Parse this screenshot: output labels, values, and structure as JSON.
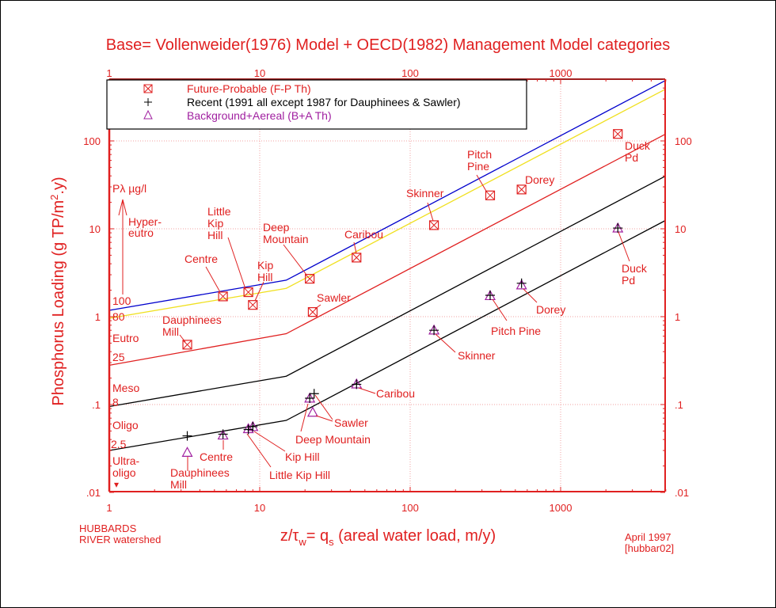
{
  "chart_data": {
    "type": "scatter",
    "title": "Base= Vollenweider(1976) Model + OECD(1982) Management Model categories",
    "xlabel": "z/τw= qs (areal water load, m/y)",
    "ylabel": "Phosphorus Loading (g TP/m2.y)",
    "xscale": "log",
    "yscale": "log",
    "xlim": [
      1,
      5000
    ],
    "ylim": [
      0.01,
      500
    ],
    "grid": true,
    "x_ticks": [
      {
        "value": 1,
        "label": "1"
      },
      {
        "value": 10,
        "label": "10"
      },
      {
        "value": 100,
        "label": "100"
      },
      {
        "value": 1000,
        "label": "1000"
      }
    ],
    "y_ticks": [
      {
        "value": 0.01,
        "label": ".01"
      },
      {
        "value": 0.1,
        "label": ".1"
      },
      {
        "value": 1,
        "label": "1"
      },
      {
        "value": 10,
        "label": "10"
      },
      {
        "value": 100,
        "label": "100"
      }
    ],
    "legend": {
      "placement": "top-left",
      "entries": [
        {
          "marker": "boxed-x",
          "label": "Future-Probable (F-P Th)",
          "color": "#e02020"
        },
        {
          "marker": "plus",
          "label": "Recent (1991 all except 1987 for Dauphinees & Sawler)",
          "color": "#000000"
        },
        {
          "marker": "triangle",
          "label": "Background+Aereal (B+A Th)",
          "color": "#a020a0"
        }
      ]
    },
    "model_lines": [
      {
        "name": "Pλ 100 µg/l (blue)",
        "color": "#0000cc",
        "x": [
          1,
          15,
          5000
        ],
        "y": [
          1.18,
          2.6,
          490
        ]
      },
      {
        "name": "Pλ 80 µg/l (yellow)",
        "color": "#f0e020",
        "x": [
          1,
          15,
          5000
        ],
        "y": [
          0.96,
          2.1,
          390
        ]
      },
      {
        "name": "Pλ 25 µg/l (red)",
        "color": "#e02020",
        "x": [
          1,
          15,
          5000
        ],
        "y": [
          0.28,
          0.64,
          120
        ]
      },
      {
        "name": "Pλ 8 µg/l (black)",
        "color": "#000000",
        "x": [
          1,
          15,
          5000
        ],
        "y": [
          0.095,
          0.21,
          40
        ]
      },
      {
        "name": "Pλ 2.5 µg/l (black)",
        "color": "#000000",
        "x": [
          1,
          15,
          5000
        ],
        "y": [
          0.03,
          0.066,
          12.5
        ]
      }
    ],
    "category_labels": [
      {
        "text": "Pλ  µg/l"
      },
      {
        "text": "Hyper-"
      },
      {
        "text": "eutro"
      },
      {
        "text": "100"
      },
      {
        "text": "80"
      },
      {
        "text": "Eutro"
      },
      {
        "text": "25"
      },
      {
        "text": "Meso"
      },
      {
        "text": "8"
      },
      {
        "text": "Oligo"
      },
      {
        "text": "2.5"
      },
      {
        "text": "Ultra-"
      },
      {
        "text": "oligo"
      }
    ],
    "series": [
      {
        "name": "Future-Probable (F-P Th)",
        "marker": "boxed-x",
        "color": "#e02020",
        "points": [
          {
            "label": "Dauphinees Mill",
            "x": 3.3,
            "y": 0.48
          },
          {
            "label": "Centre",
            "x": 5.7,
            "y": 1.7
          },
          {
            "label": "Little Kip Hill",
            "x": 8.4,
            "y": 1.9
          },
          {
            "label": "Kip Hill",
            "x": 9.0,
            "y": 1.36
          },
          {
            "label": "Deep Mountain",
            "x": 21.5,
            "y": 2.7
          },
          {
            "label": "Sawler",
            "x": 22.5,
            "y": 1.13
          },
          {
            "label": "Caribou",
            "x": 44,
            "y": 4.7
          },
          {
            "label": "Skinner",
            "x": 144,
            "y": 11
          },
          {
            "label": "Pitch Pine",
            "x": 340,
            "y": 24
          },
          {
            "label": "Dorey",
            "x": 550,
            "y": 28
          },
          {
            "label": "Duck Pd",
            "x": 2400,
            "y": 120
          }
        ]
      },
      {
        "name": "Recent (1991 all except 1987 for Dauphinees & Sawler)",
        "marker": "plus",
        "color": "#000000",
        "points": [
          {
            "label": "Dauphinees Mill",
            "x": 3.3,
            "y": 0.044
          },
          {
            "label": "Centre",
            "x": 5.7,
            "y": 0.046
          },
          {
            "label": "Little Kip Hill",
            "x": 8.4,
            "y": 0.052
          },
          {
            "label": "Kip Hill",
            "x": 9.0,
            "y": 0.056
          },
          {
            "label": "Deep Mountain",
            "x": 21.5,
            "y": 0.118
          },
          {
            "label": "Sawler",
            "x": 23,
            "y": 0.133
          },
          {
            "label": "Caribou",
            "x": 44,
            "y": 0.17
          },
          {
            "label": "Skinner",
            "x": 144,
            "y": 0.7
          },
          {
            "label": "Pitch Pine",
            "x": 340,
            "y": 1.75
          },
          {
            "label": "Dorey",
            "x": 550,
            "y": 2.4
          },
          {
            "label": "Duck Pd",
            "x": 2400,
            "y": 10.2
          }
        ]
      },
      {
        "name": "Background+Aereal (B+A Th)",
        "marker": "triangle",
        "color": "#a020a0",
        "points": [
          {
            "label": "Dauphinees Mill",
            "x": 3.3,
            "y": 0.028
          },
          {
            "label": "Centre",
            "x": 5.7,
            "y": 0.044
          },
          {
            "label": "Little Kip Hill",
            "x": 8.4,
            "y": 0.052
          },
          {
            "label": "Kip Hill",
            "x": 9.0,
            "y": 0.055
          },
          {
            "label": "Deep Mountain",
            "x": 21.5,
            "y": 0.116
          },
          {
            "label": "Sawler",
            "x": 22.5,
            "y": 0.08
          },
          {
            "label": "Caribou",
            "x": 44,
            "y": 0.168
          },
          {
            "label": "Skinner",
            "x": 144,
            "y": 0.69
          },
          {
            "label": "Pitch Pine",
            "x": 340,
            "y": 1.7
          },
          {
            "label": "Dorey",
            "x": 550,
            "y": 2.25
          },
          {
            "label": "Duck Pd",
            "x": 2400,
            "y": 10
          }
        ]
      }
    ],
    "annotations": {
      "fp_labels": [
        {
          "lines": [
            "Dauphinees",
            "Mill"
          ]
        },
        {
          "lines": [
            "Centre"
          ]
        },
        {
          "lines": [
            "Little",
            "Kip",
            "Hill"
          ]
        },
        {
          "lines": [
            "Kip",
            "Hill"
          ]
        },
        {
          "lines": [
            "Deep",
            "Mountain"
          ]
        },
        {
          "lines": [
            "Sawler"
          ]
        },
        {
          "lines": [
            "Caribou"
          ]
        },
        {
          "lines": [
            "Skinner"
          ]
        },
        {
          "lines": [
            "Pitch",
            "Pine"
          ]
        },
        {
          "lines": [
            "Dorey"
          ]
        },
        {
          "lines": [
            "Duck",
            "Pd"
          ]
        }
      ],
      "ba_labels": [
        {
          "lines": [
            "Dauphinees",
            "Mill"
          ]
        },
        {
          "lines": [
            "Centre"
          ]
        },
        {
          "lines": [
            "Little Kip Hill"
          ]
        },
        {
          "lines": [
            "Kip Hill"
          ]
        },
        {
          "lines": [
            "Deep Mountain"
          ]
        },
        {
          "lines": [
            "Sawler"
          ]
        },
        {
          "lines": [
            "Caribou"
          ]
        },
        {
          "lines": [
            "Skinner"
          ]
        },
        {
          "lines": [
            "Pitch Pine"
          ]
        },
        {
          "lines": [
            "Dorey"
          ]
        },
        {
          "lines": [
            "Duck",
            "Pd"
          ]
        }
      ]
    },
    "footer_left": [
      "HUBBARDS",
      "RIVER watershed"
    ],
    "footer_right": [
      "April 1997",
      "[hubbar02]"
    ]
  },
  "colors": {
    "axis": "#e02020",
    "grid": "#f0a0a0",
    "fp": "#e02020",
    "recent": "#000000",
    "ba": "#a020a0"
  }
}
